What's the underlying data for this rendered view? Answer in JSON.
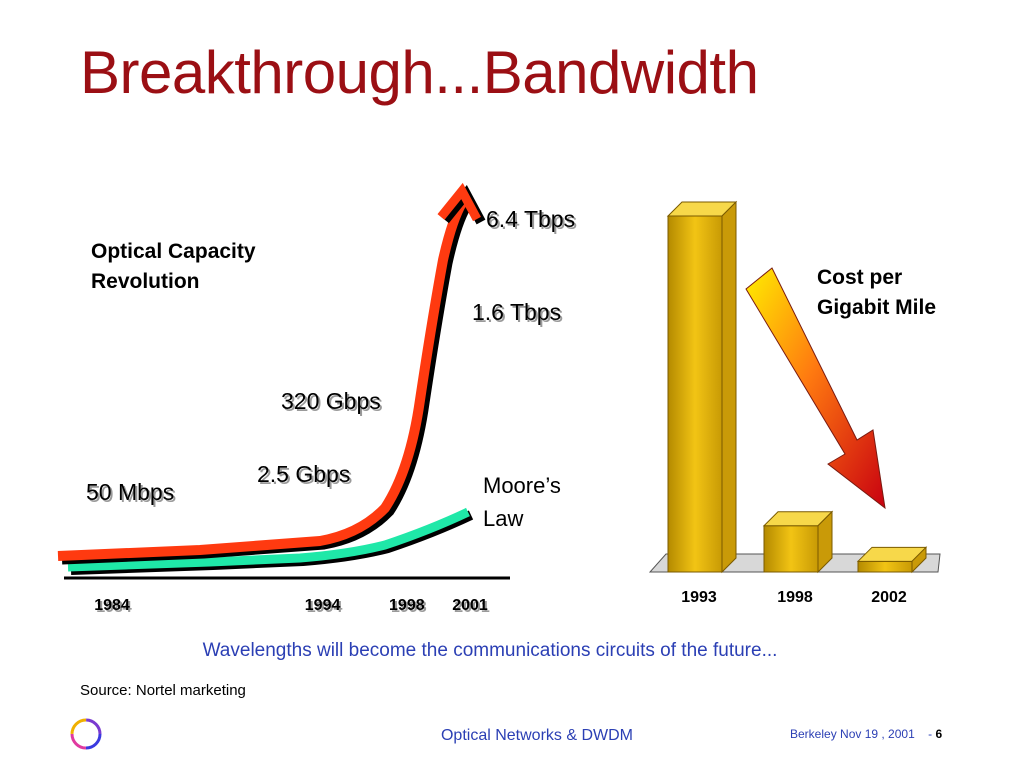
{
  "slide": {
    "title": "Breakthrough...Bandwidth",
    "caption": "Wavelengths will become the communications circuits of the future...",
    "source": "Source: Nortel marketing",
    "footer_title": "Optical Networks & DWDM",
    "footer_date": "Berkeley Nov 19 , 2001",
    "footer_sep": "-",
    "page_number": "6"
  },
  "colors": {
    "title": "#9b0f14",
    "accent_blue": "#2b3fb4",
    "capacity_curve": "#ff3a10",
    "moores_curve": "#1fe8a8",
    "bar_gold": "#e8bb10",
    "arrow_start": "#ffee00",
    "arrow_end": "#c80010"
  },
  "chart_data": [
    {
      "type": "line",
      "title": "Optical Capacity Revolution",
      "x_ticks": [
        "1984",
        "1994",
        "1998",
        "2001"
      ],
      "series": [
        {
          "name": "Optical Capacity",
          "x": [
            1984,
            1994,
            1998,
            2001
          ],
          "labels": [
            "50 Mbps",
            "2.5 Gbps",
            "320 Gbps",
            "1.6 Tbps",
            "6.4 Tbps"
          ]
        },
        {
          "name": "Moore’s Law",
          "x": [
            1984,
            1994,
            1998,
            2001
          ]
        }
      ],
      "annotations": [
        "50 Mbps",
        "2.5 Gbps",
        "320 Gbps",
        "1.6 Tbps",
        "6.4 Tbps"
      ],
      "moore_label": [
        "Moore’s",
        "Law"
      ],
      "grid": false
    },
    {
      "type": "bar",
      "title": "Cost per Gigabit Mile",
      "title_lines": [
        "Cost per",
        "Gigabit Mile"
      ],
      "categories": [
        "1993",
        "1998",
        "2002"
      ],
      "values": [
        100,
        13,
        3
      ],
      "grid": false
    }
  ]
}
